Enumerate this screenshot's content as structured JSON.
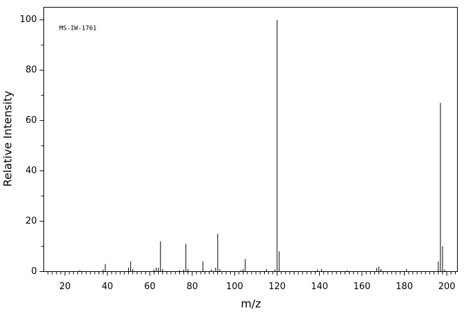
{
  "chart_data": {
    "type": "stem",
    "annotation": "MS-IW-1761",
    "xlabel": "m/z",
    "ylabel": "Relative Intensity",
    "color": "#000000",
    "x": [
      27,
      38,
      39,
      50,
      51,
      52,
      62,
      63,
      64,
      65,
      66,
      74,
      76,
      77,
      78,
      85,
      89,
      91,
      92,
      93,
      103,
      104,
      105,
      115,
      119,
      120,
      121,
      139,
      141,
      153,
      167,
      168,
      169,
      181,
      196,
      197,
      198,
      199
    ],
    "values": [
      0.5,
      0.8,
      3,
      1.5,
      4,
      1,
      0.8,
      1.5,
      1.5,
      12,
      1,
      0.5,
      0.8,
      11,
      1,
      4,
      0.8,
      1.5,
      15,
      1,
      0.5,
      1,
      5,
      1,
      0.8,
      100,
      8,
      0.8,
      1,
      0.5,
      1.5,
      2,
      1,
      1,
      4,
      67,
      10,
      0.8
    ],
    "xlim": [
      10,
      205
    ],
    "ylim": [
      0,
      105
    ],
    "xticks": [
      20,
      40,
      60,
      80,
      100,
      120,
      140,
      160,
      180,
      200
    ],
    "xminorticks": [
      12,
      14,
      16,
      18,
      22,
      24,
      26,
      28,
      30,
      32,
      34,
      36,
      38,
      42,
      44,
      46,
      48,
      50,
      52,
      54,
      56,
      58,
      62,
      64,
      66,
      68,
      70,
      72,
      74,
      76,
      78,
      82,
      84,
      86,
      88,
      90,
      92,
      94,
      96,
      98,
      102,
      104,
      106,
      108,
      110,
      112,
      114,
      116,
      118,
      122,
      124,
      126,
      128,
      130,
      132,
      134,
      136,
      138,
      142,
      144,
      146,
      148,
      150,
      152,
      154,
      156,
      158,
      162,
      164,
      166,
      168,
      170,
      172,
      174,
      176,
      178,
      182,
      184,
      186,
      188,
      190,
      192,
      194,
      196,
      198,
      202,
      204
    ],
    "yticks": [
      0,
      20,
      40,
      60,
      80,
      100
    ],
    "yminorticks": [
      10,
      30,
      50,
      70,
      90
    ]
  }
}
